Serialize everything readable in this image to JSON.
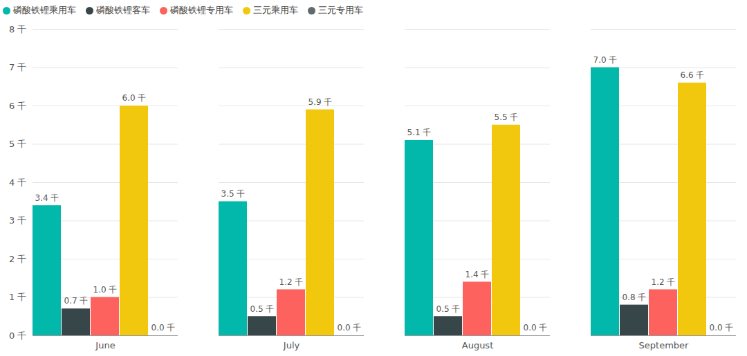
{
  "chart_data": {
    "type": "bar",
    "categories": [
      "June",
      "July",
      "August",
      "September"
    ],
    "series": [
      {
        "name": "磷酸铁锂乘用车",
        "color": "#01b8aa",
        "values": [
          3400,
          3500,
          5100,
          7000
        ],
        "value_labels": [
          "3.4 千",
          "3.5 千",
          "5.1 千",
          "7.0 千"
        ]
      },
      {
        "name": "磷酸铁锂客车",
        "color": "#374649",
        "values": [
          700,
          500,
          500,
          800
        ],
        "value_labels": [
          "0.7 千",
          "0.5 千",
          "0.5 千",
          "0.8 千"
        ]
      },
      {
        "name": "磷酸铁锂专用车",
        "color": "#fd625e",
        "values": [
          1000,
          1200,
          1400,
          1200
        ],
        "value_labels": [
          "1.0 千",
          "1.2 千",
          "1.4 千",
          "1.2 千"
        ]
      },
      {
        "name": "三元乘用车",
        "color": "#f2c80f",
        "values": [
          6000,
          5900,
          5500,
          6600
        ],
        "value_labels": [
          "6.0 千",
          "5.9 千",
          "5.5 千",
          "6.6 千"
        ]
      },
      {
        "name": "三元专用车",
        "color": "#5f6b6d",
        "values": [
          0,
          0,
          0,
          0
        ],
        "value_labels": [
          "0.0 千",
          "0.0 千",
          "0.0 千",
          "0.0 千"
        ]
      }
    ],
    "ylim": [
      0,
      8000
    ],
    "yticks": [
      {
        "value": 0,
        "label": "0 千"
      },
      {
        "value": 1000,
        "label": "1 千"
      },
      {
        "value": 2000,
        "label": "2 千"
      },
      {
        "value": 3000,
        "label": "3 千"
      },
      {
        "value": 4000,
        "label": "4 千"
      },
      {
        "value": 5000,
        "label": "5 千"
      },
      {
        "value": 6000,
        "label": "6 千"
      },
      {
        "value": 7000,
        "label": "7 千"
      },
      {
        "value": 8000,
        "label": "8 千"
      }
    ],
    "grid": true,
    "legend": "top-left",
    "data_labels": true
  }
}
